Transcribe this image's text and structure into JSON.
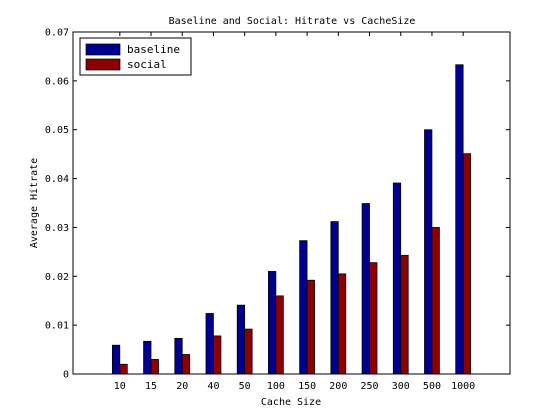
{
  "chart_data": {
    "type": "bar",
    "title": "Baseline and Social: Hitrate vs CacheSize",
    "xlabel": "Cache Size",
    "ylabel": "Average Hitrate",
    "categories": [
      "10",
      "15",
      "20",
      "40",
      "50",
      "100",
      "150",
      "200",
      "250",
      "300",
      "500",
      "1000"
    ],
    "series": [
      {
        "name": "baseline",
        "color": "#00008f",
        "values": [
          0.0059,
          0.0067,
          0.0073,
          0.0124,
          0.0141,
          0.021,
          0.0273,
          0.0312,
          0.0349,
          0.0391,
          0.05,
          0.0633
        ]
      },
      {
        "name": "social",
        "color": "#8b0000",
        "values": [
          0.002,
          0.003,
          0.004,
          0.0078,
          0.0092,
          0.016,
          0.0192,
          0.0205,
          0.0228,
          0.0243,
          0.03,
          0.0451
        ]
      }
    ],
    "ylim": [
      0,
      0.07
    ],
    "yticks": [
      0,
      0.01,
      0.02,
      0.03,
      0.04,
      0.05,
      0.06,
      0.07
    ],
    "ytick_labels": [
      "0",
      "0.01",
      "0.02",
      "0.03",
      "0.04",
      "0.05",
      "0.06",
      "0.07"
    ],
    "grid": false,
    "legend": "top-left"
  }
}
